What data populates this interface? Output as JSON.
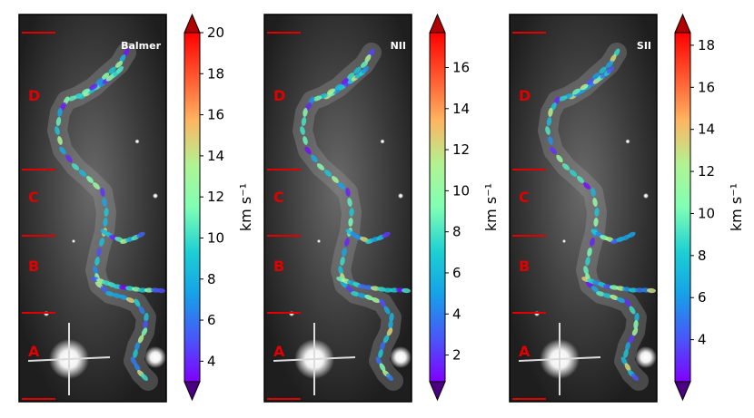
{
  "chart_data": [
    {
      "type": "image-with-colorbar",
      "title": "Balmer",
      "region_labels": [
        "D",
        "C",
        "B",
        "A"
      ],
      "colorbar": {
        "label": "km s⁻¹",
        "colormap": "rainbow",
        "extend": "both",
        "range": [
          3,
          20
        ],
        "ticks": [
          4,
          6,
          8,
          10,
          12,
          14,
          16,
          18,
          20
        ]
      }
    },
    {
      "type": "image-with-colorbar",
      "title": "NII",
      "region_labels": [
        "D",
        "C",
        "B",
        "A"
      ],
      "colorbar": {
        "label": "km s⁻¹",
        "colormap": "rainbow",
        "extend": "both",
        "range": [
          0.7,
          17.7
        ],
        "ticks": [
          2,
          4,
          6,
          8,
          10,
          12,
          14,
          16
        ]
      }
    },
    {
      "type": "image-with-colorbar",
      "title": "SII",
      "region_labels": [
        "D",
        "C",
        "B",
        "A"
      ],
      "colorbar": {
        "label": "km s⁻¹",
        "colormap": "rainbow",
        "extend": "both",
        "range": [
          2,
          18.6
        ],
        "ticks": [
          4,
          6,
          8,
          10,
          12,
          14,
          16,
          18
        ]
      }
    }
  ]
}
